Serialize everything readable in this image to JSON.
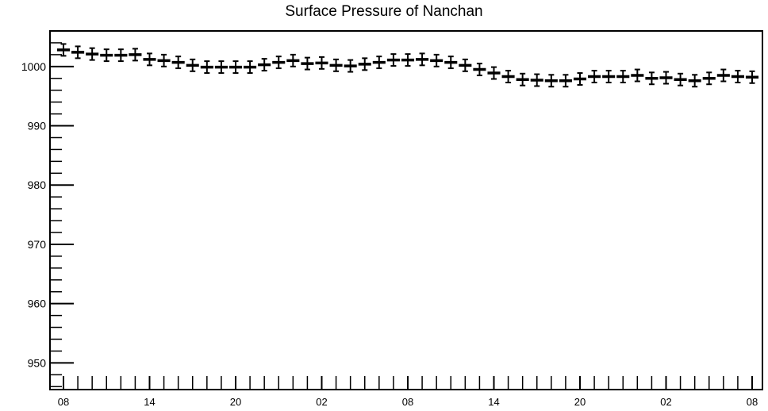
{
  "chart_data": {
    "type": "scatter",
    "title": "Surface Pressure of Nanchan",
    "xlabel": "",
    "ylabel": "",
    "ylim": [
      945.5,
      1006
    ],
    "yticks": [
      950,
      960,
      970,
      980,
      990,
      1000
    ],
    "x_tick_labels": [
      "08",
      "14",
      "20",
      "02",
      "08",
      "14",
      "20",
      "02",
      "08"
    ],
    "x_tick_interval_points": 6,
    "error_bar": 1.0,
    "grid": false,
    "series": [
      {
        "values": [
          1002.8,
          1002.4,
          1002.1,
          1001.9,
          1001.9,
          1002.0,
          1001.2,
          1001.0,
          1000.7,
          1000.2,
          999.9,
          999.9,
          999.9,
          999.9,
          1000.3,
          1000.7,
          1001.0,
          1000.5,
          1000.6,
          1000.2,
          1000.1,
          1000.4,
          1000.7,
          1001.1,
          1001.1,
          1001.2,
          1001.0,
          1000.7,
          1000.2,
          999.5,
          998.9,
          998.3,
          997.8,
          997.7,
          997.6,
          997.6,
          997.9,
          998.3,
          998.3,
          998.3,
          998.5,
          998.0,
          998.1,
          997.8,
          997.6,
          998.0,
          998.5,
          998.3,
          998.2
        ]
      }
    ]
  }
}
